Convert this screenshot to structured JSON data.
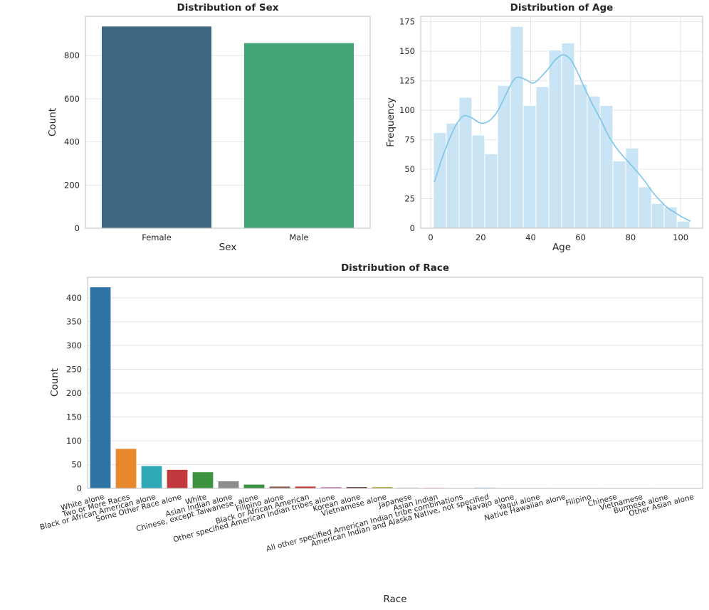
{
  "style": {
    "background": "#ffffff",
    "text_color": "#262626",
    "grid_color": "#e4e4e4",
    "spine_color": "#c9c9c9"
  },
  "chart_data": [
    {
      "id": "sex",
      "type": "bar",
      "title": "Distribution of Sex",
      "xlabel": "Sex",
      "ylabel": "Count",
      "categories": [
        "Female",
        "Male"
      ],
      "values": [
        935,
        858
      ],
      "bar_colors": [
        "#3d6680",
        "#43a679"
      ],
      "bar_width_frac": 0.77,
      "yticks": [
        0,
        200,
        400,
        600,
        800
      ],
      "ylim": [
        0,
        982
      ],
      "grid": "horizontal",
      "legend": "none"
    },
    {
      "id": "age",
      "type": "histogram",
      "title": "Distribution of Age",
      "xlabel": "Age",
      "ylabel": "Frequency",
      "bin_start": 1.1,
      "bin_width": 5.13,
      "bin_counts": [
        81,
        89,
        111,
        79,
        63,
        121,
        171,
        104,
        120,
        151,
        157,
        122,
        112,
        104,
        57,
        68,
        35,
        21,
        18,
        6
      ],
      "kde_points": [
        [
          1.5,
          39
        ],
        [
          4,
          56
        ],
        [
          7,
          73
        ],
        [
          10,
          87
        ],
        [
          13,
          95
        ],
        [
          16,
          94
        ],
        [
          19,
          90
        ],
        [
          21,
          89
        ],
        [
          24,
          92
        ],
        [
          27,
          100
        ],
        [
          30,
          113
        ],
        [
          33,
          125
        ],
        [
          35,
          128
        ],
        [
          38,
          126
        ],
        [
          41,
          123
        ],
        [
          44,
          128
        ],
        [
          47,
          135
        ],
        [
          50,
          143
        ],
        [
          53,
          147
        ],
        [
          56,
          143
        ],
        [
          59,
          131
        ],
        [
          62,
          117
        ],
        [
          65,
          104
        ],
        [
          68,
          92
        ],
        [
          71,
          79
        ],
        [
          74,
          69
        ],
        [
          77,
          61
        ],
        [
          80,
          54
        ],
        [
          83,
          47
        ],
        [
          86,
          39
        ],
        [
          89,
          30
        ],
        [
          92,
          23
        ],
        [
          95,
          17
        ],
        [
          98,
          13
        ],
        [
          101,
          9
        ],
        [
          104,
          6
        ]
      ],
      "bar_fill": "#c9e5f5",
      "bar_edge": "#ffffff",
      "kde_color": "#7cc4e8",
      "xticks": [
        0,
        20,
        40,
        60,
        80,
        100
      ],
      "yticks": [
        0,
        25,
        50,
        75,
        100,
        125,
        150,
        175
      ],
      "xlim": [
        -4,
        108.8
      ],
      "ylim": [
        0,
        179.6
      ],
      "grid": "both",
      "legend": "none"
    },
    {
      "id": "race",
      "type": "bar",
      "title": "Distribution of Race",
      "xlabel": "Race",
      "ylabel": "Count",
      "categories": [
        "White alone",
        "Two or More Races",
        "Black or African American alone",
        "Some Other Race alone",
        "White",
        "Asian Indian alone",
        "Chinese, except Taiwanese, alone",
        "Filipino alone",
        "Black or African American",
        "Other specified American Indian tribes alone",
        "Korean alone",
        "Vietnamese alone",
        "Japanese",
        "Asian Indian",
        "All other specified American Indian tribe combinations",
        "American Indian and Alaska Native, not specified",
        "Navajo alone",
        "Yaqui alone",
        "Native Hawaiian alone",
        "Filipino",
        "Chinese",
        "Vietnamese",
        "Burmese alone",
        "Other Asian alone"
      ],
      "values": [
        422,
        83,
        47,
        39,
        34,
        15,
        8,
        4,
        4,
        3,
        3,
        3,
        2,
        2,
        1,
        2,
        1,
        1,
        1,
        1,
        1,
        1,
        1,
        1
      ],
      "bar_colors": [
        "#2e74a6",
        "#e8882d",
        "#2fa8b8",
        "#c23a3e",
        "#3d9440",
        "#8c8c8c",
        "#3a8f3d",
        "#8a6055",
        "#cc3b3b",
        "#dd8bc9",
        "#7d5456",
        "#b8b84a",
        "#c3d9bd",
        "#efcfcc",
        "#f3ddc3",
        "#b5cfe2",
        "#f2d8ba",
        "#d4d8d2",
        "#dde6d5",
        "#f0e1cf",
        "#cfdde8",
        "#e8d9c8",
        "#dcdcdc",
        "#e4e8d8"
      ],
      "bar_width_frac": 0.8,
      "yticks": [
        0,
        50,
        100,
        150,
        200,
        250,
        300,
        350,
        400
      ],
      "ylim": [
        0,
        443
      ],
      "grid": "horizontal",
      "label_rotation_deg": -15,
      "legend": "none"
    }
  ]
}
